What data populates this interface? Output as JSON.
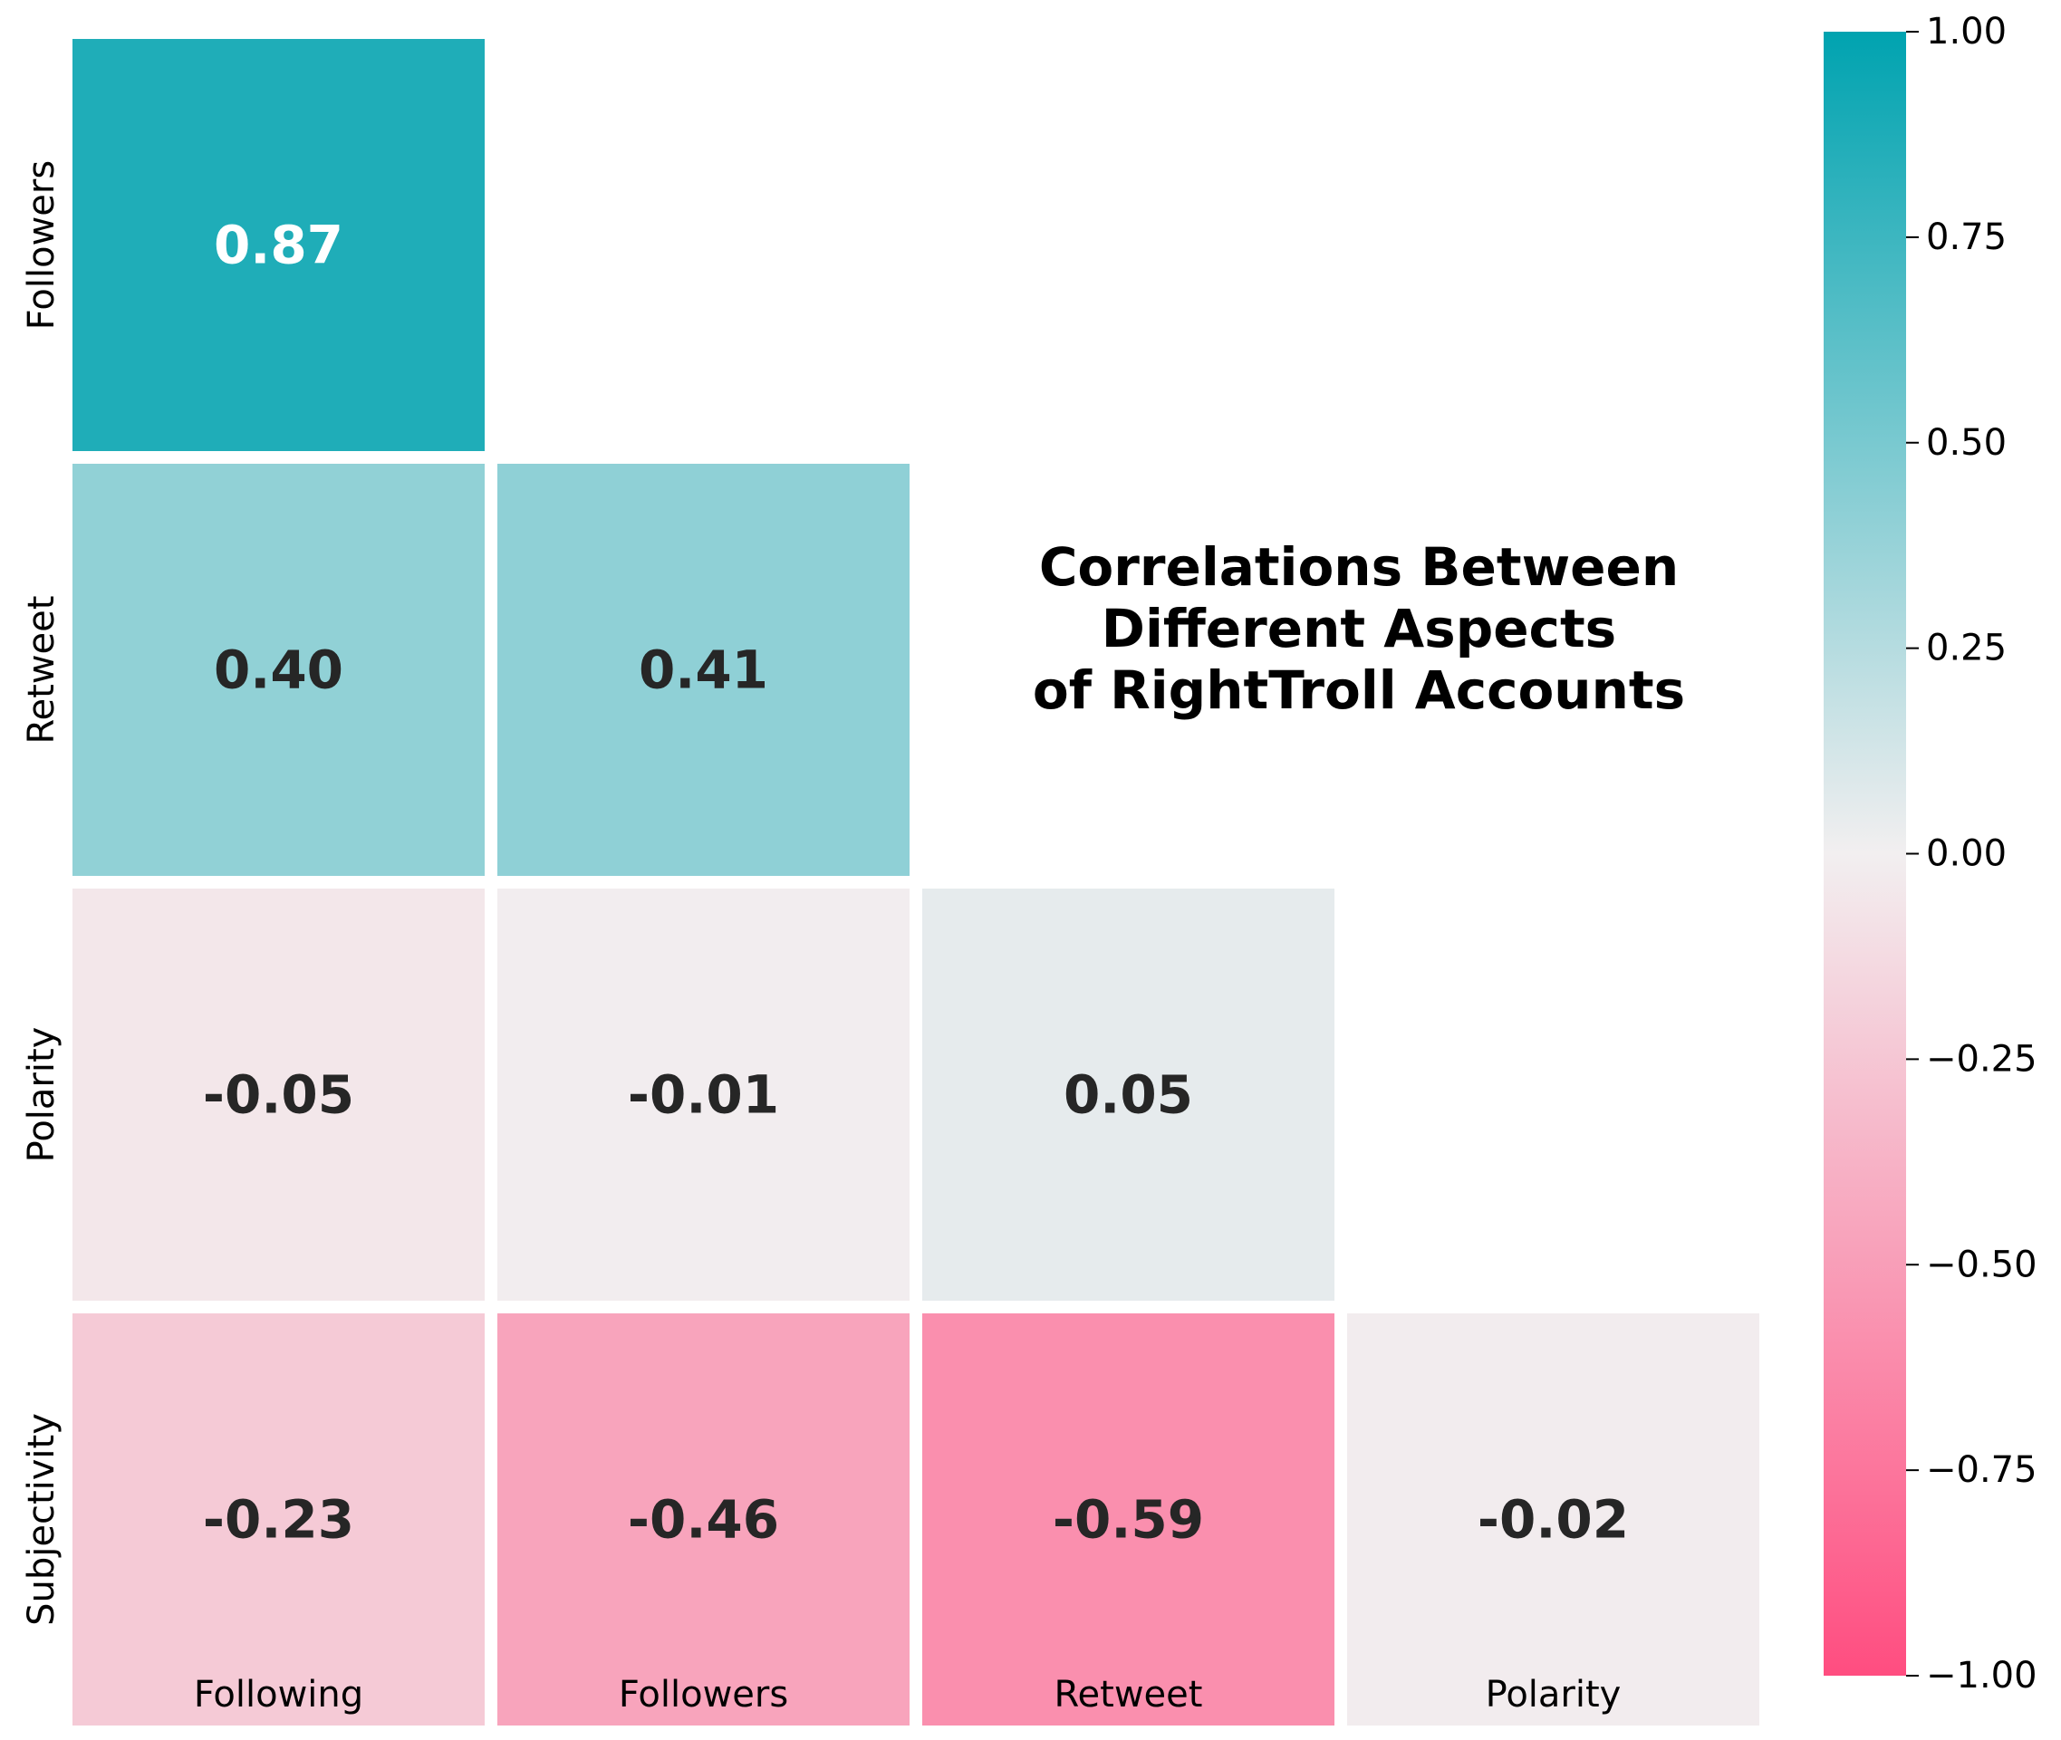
{
  "chart_data": {
    "type": "heatmap",
    "title_lines": [
      "Correlations Between",
      "Different Aspects",
      "of RightTroll Accounts"
    ],
    "x_categories": [
      "Following",
      "Followers",
      "Retweet",
      "Polarity"
    ],
    "y_categories": [
      "Followers",
      "Retweet",
      "Polarity",
      "Subjectivity"
    ],
    "matrix": [
      [
        0.87,
        null,
        null,
        null
      ],
      [
        0.4,
        0.41,
        null,
        null
      ],
      [
        -0.05,
        -0.01,
        0.05,
        null
      ],
      [
        -0.23,
        -0.46,
        -0.59,
        -0.02
      ]
    ],
    "value_format": "2 decimals",
    "masked": "upper triangle",
    "colorbar": {
      "vmin": -1.0,
      "vmax": 1.0,
      "ticks": [
        1.0,
        0.75,
        0.5,
        0.25,
        0.0,
        -0.25,
        -0.5,
        -0.75,
        -1.0
      ],
      "tick_labels": [
        "1.00",
        "0.75",
        "0.50",
        "0.25",
        "0.00",
        "−0.25",
        "−0.50",
        "−0.75",
        "−1.00"
      ]
    },
    "colors": {
      "negative_end": "#ff4d80",
      "center": "#f2eff0",
      "positive_end": "#00a3b0",
      "dark_text": "#262626",
      "light_text": "#ffffff"
    }
  }
}
